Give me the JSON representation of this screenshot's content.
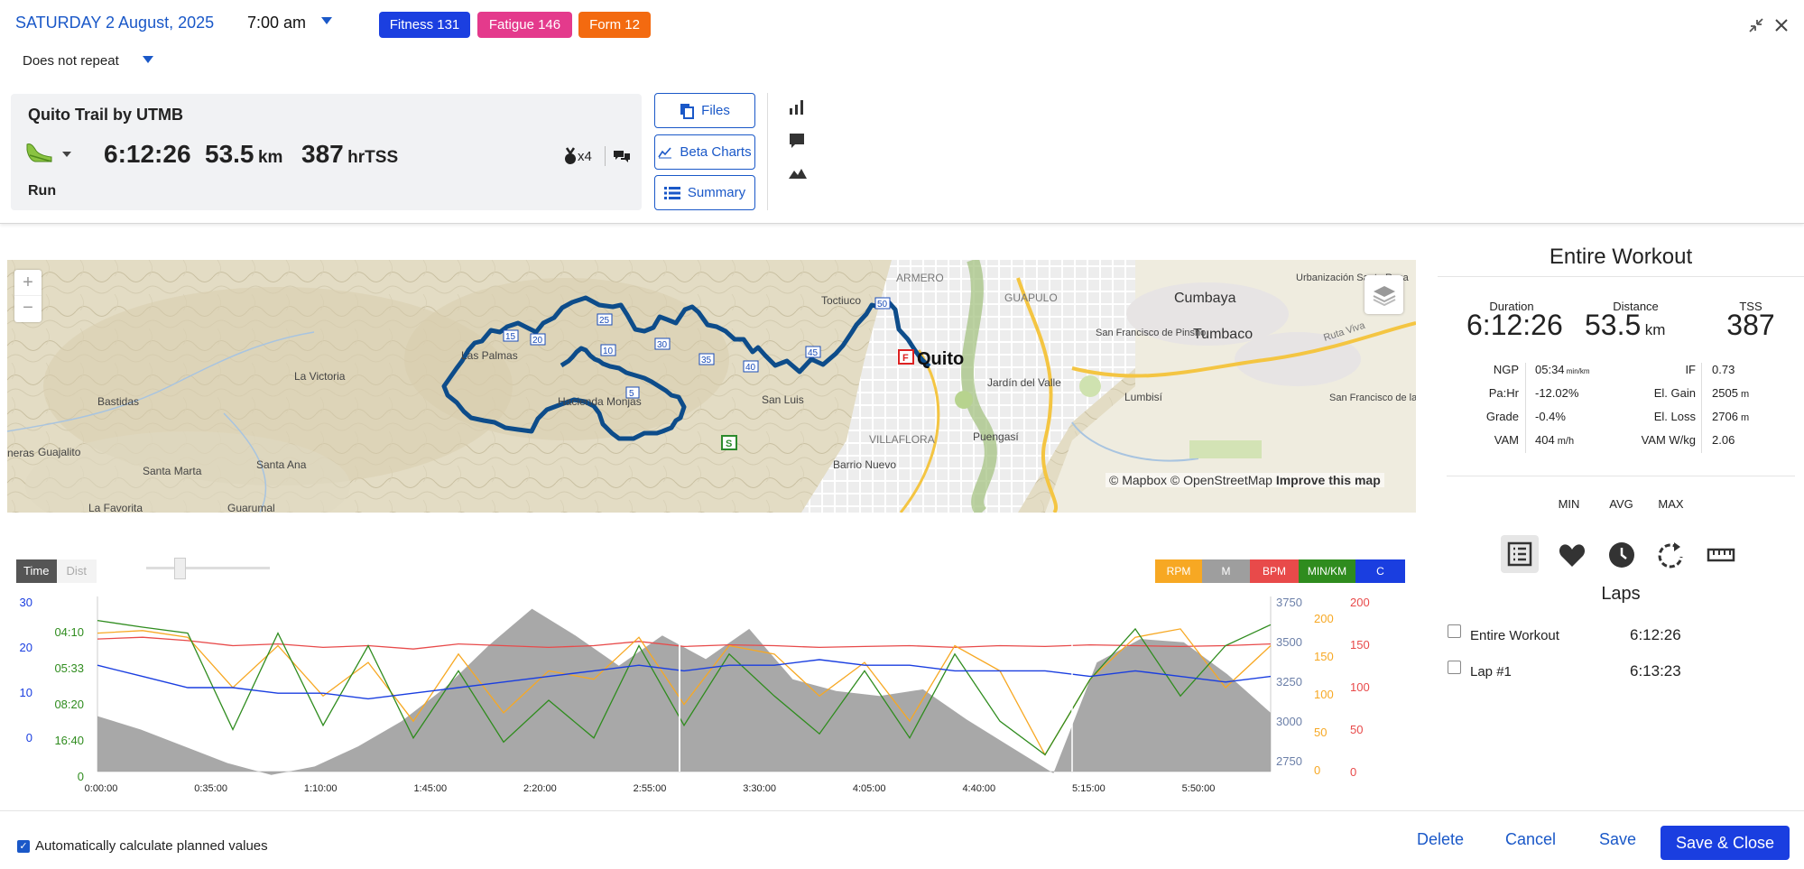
{
  "header": {
    "date": "SATURDAY 2 August, 2025",
    "time": "7:00 am",
    "repeat": "Does not repeat",
    "badges": [
      {
        "label": "Fitness 131",
        "color": "#1b3fe0"
      },
      {
        "label": "Fatigue 146",
        "color": "#e43a8c"
      },
      {
        "label": "Form 12",
        "color": "#f36a10"
      }
    ]
  },
  "workout": {
    "title": "Quito Trail by UTMB",
    "duration": "6:12:26",
    "distance": "53.5",
    "distance_unit": "km",
    "tss": "387",
    "tss_unit": "hrTSS",
    "sport": "Run",
    "medal_count": "x4"
  },
  "actions": {
    "files": "Files",
    "beta_charts": "Beta Charts",
    "summary": "Summary"
  },
  "map": {
    "places": [
      {
        "name": "Quito"
      },
      {
        "name": "Cumbaya"
      },
      {
        "name": "Tumbaco"
      },
      {
        "name": "GUAPULO"
      },
      {
        "name": "ARMERO"
      },
      {
        "name": "Urbanización Santa Rosa"
      },
      {
        "name": "San Francisco de Pinsho"
      },
      {
        "name": "Ruta Viva"
      },
      {
        "name": "Jardín del Valle"
      },
      {
        "name": "Lumbisí"
      },
      {
        "name": "San Francisco de la Tola Grande"
      },
      {
        "name": "Puengasí"
      },
      {
        "name": "VILLAFLORA"
      },
      {
        "name": "Barrio Nuevo"
      },
      {
        "name": "San Luis"
      },
      {
        "name": "Hacienda Monjas"
      },
      {
        "name": "Las Palmas"
      },
      {
        "name": "La Victoria"
      },
      {
        "name": "Bastidas"
      },
      {
        "name": "Guajalito"
      },
      {
        "name": "Santa Marta"
      },
      {
        "name": "Santa Ana"
      },
      {
        "name": "La Favorita"
      },
      {
        "name": "Guarumal"
      },
      {
        "name": "neras"
      },
      {
        "name": "Toctiuco"
      }
    ],
    "km_markers": [
      "5",
      "10",
      "15",
      "20",
      "25",
      "30",
      "35",
      "40",
      "45",
      "50"
    ],
    "attribution": "© Mapbox © OpenStreetMap",
    "improve": "Improve this map",
    "zoom_in": "+",
    "zoom_out": "−"
  },
  "chart_controls": {
    "time": "Time",
    "dist": "Dist",
    "legend": [
      {
        "label": "RPM",
        "color": "#f7a823"
      },
      {
        "label": "M",
        "color": "#9e9e9e"
      },
      {
        "label": "BPM",
        "color": "#e84a4a"
      },
      {
        "label": "MIN/KM",
        "color": "#2f8c1e"
      },
      {
        "label": "C",
        "color": "#1a3ee0"
      }
    ]
  },
  "chart_data": {
    "type": "line",
    "x_labels": [
      "0:00:00",
      "0:35:00",
      "1:10:00",
      "1:45:00",
      "2:20:00",
      "2:55:00",
      "3:30:00",
      "4:05:00",
      "4:40:00",
      "5:15:00",
      "5:50:00"
    ],
    "axes": {
      "c": {
        "color": "#1a3ee0",
        "ticks": [
          "30",
          "20",
          "10",
          "0"
        ]
      },
      "pace": {
        "color": "#2f8c1e",
        "ticks": [
          "04:10",
          "05:33",
          "08:20",
          "16:40",
          "0"
        ]
      },
      "elev": {
        "color": "#6b7fa8",
        "ticks": [
          "3750",
          "3500",
          "3250",
          "3000",
          "2750"
        ]
      },
      "rpm": {
        "color": "#f7a823",
        "ticks": [
          "200",
          "150",
          "100",
          "50",
          "0"
        ]
      },
      "bpm": {
        "color": "#e84a4a",
        "ticks": [
          "200",
          "150",
          "100",
          "50",
          "0"
        ]
      }
    },
    "series": [
      {
        "name": "M",
        "color": "#9e9e9e",
        "values": [
          3080,
          3000,
          2900,
          2800,
          2730,
          2780,
          2900,
          3050,
          3250,
          3500,
          3720,
          3560,
          3380,
          3560,
          3420,
          3600,
          3300,
          3230,
          3200,
          3240,
          3060,
          2900,
          2740,
          3400,
          3540,
          3520,
          3330,
          3100
        ]
      },
      {
        "name": "BPM",
        "color": "#e84a4a",
        "values": [
          158,
          160,
          156,
          150,
          152,
          148,
          150,
          146,
          152,
          150,
          148,
          150,
          155,
          149,
          151,
          150,
          148,
          149,
          150,
          148,
          150,
          149,
          151,
          150,
          149,
          150,
          152
        ]
      },
      {
        "name": "RPM",
        "color": "#f7a823",
        "values": [
          165,
          168,
          160,
          100,
          150,
          90,
          130,
          60,
          140,
          70,
          120,
          110,
          160,
          80,
          150,
          140,
          90,
          130,
          60,
          150,
          120,
          20,
          110,
          160,
          170,
          100,
          150
        ]
      },
      {
        "name": "MIN/KM",
        "color": "#2f8c1e",
        "values": [
          180,
          172,
          165,
          50,
          165,
          55,
          150,
          40,
          120,
          35,
          85,
          40,
          150,
          55,
          140,
          90,
          45,
          120,
          40,
          140,
          60,
          20,
          110,
          170,
          90,
          150,
          175
        ]
      },
      {
        "name": "C",
        "color": "#1a3ee0",
        "values": [
          19,
          17,
          15,
          15,
          14,
          14,
          13,
          14,
          15,
          16,
          17,
          18,
          19,
          18,
          19,
          19,
          20,
          19,
          19,
          18,
          18,
          18,
          17,
          18,
          17,
          16,
          17
        ]
      }
    ]
  },
  "summary": {
    "title": "Entire Workout",
    "duration_label": "Duration",
    "duration": "6:12:26",
    "distance_label": "Distance",
    "distance": "53.5",
    "distance_unit": "km",
    "tss_label": "TSS",
    "tss": "387",
    "stats": [
      {
        "label": "NGP",
        "value": "05:34",
        "unit": "min/km",
        "label2": "IF",
        "value2": "0.73",
        "unit2": ""
      },
      {
        "label": "Pa:Hr",
        "value": "-12.02%",
        "unit": "",
        "label2": "El. Gain",
        "value2": "2505",
        "unit2": "m"
      },
      {
        "label": "Grade",
        "value": "-0.4%",
        "unit": "",
        "label2": "El. Loss",
        "value2": "2706",
        "unit2": "m"
      },
      {
        "label": "VAM",
        "value": "404",
        "unit": "m/h",
        "label2": "VAM W/kg",
        "value2": "2.06",
        "unit2": ""
      }
    ],
    "col_min": "MIN",
    "col_avg": "AVG",
    "col_max": "MAX",
    "laps_title": "Laps",
    "laps": [
      {
        "name": "Entire Workout",
        "time": "6:12:26"
      },
      {
        "name": "Lap #1",
        "time": "6:13:23"
      }
    ]
  },
  "footer": {
    "auto_calc": "Automatically calculate planned values",
    "delete": "Delete",
    "cancel": "Cancel",
    "save": "Save",
    "save_close": "Save & Close"
  }
}
